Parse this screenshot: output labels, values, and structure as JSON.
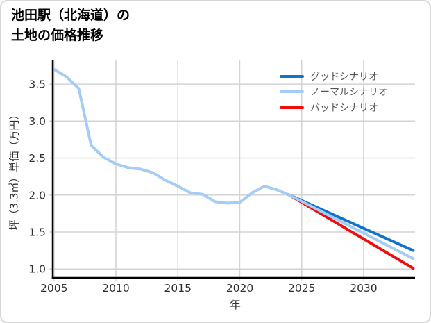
{
  "title": {
    "line1": "池田駅（北海道）の",
    "line2": "土地の価格推移"
  },
  "colors": {
    "good": "#1273cb",
    "normal": "#a4ccf4",
    "bad": "#f20d0d",
    "grid": "#d3d3d3",
    "axis": "#000000",
    "tick_text": "#303030",
    "legend_text": "#555555"
  },
  "legend": {
    "items": [
      {
        "label": "グッドシナリオ",
        "color_key": "good"
      },
      {
        "label": "ノーマルシナリオ",
        "color_key": "normal"
      },
      {
        "label": "バッドシナリオ",
        "color_key": "bad"
      }
    ]
  },
  "chart_data": {
    "type": "line",
    "title": "池田駅（北海道）の土地の価格推移",
    "xlabel": "年",
    "ylabel": "坪（3.3㎡）単価（万円）",
    "xlim": [
      2004.9,
      2034.15
    ],
    "ylim": [
      0.88,
      3.82
    ],
    "x_ticks": [
      2005,
      2010,
      2015,
      2020,
      2025,
      2030
    ],
    "y_ticks": [
      1.0,
      1.5,
      2.0,
      2.5,
      3.0,
      3.5
    ],
    "grid": true,
    "legend_position": "top-right",
    "series": [
      {
        "key": "history",
        "color_key": "normal",
        "x": [
          2005,
          2006,
          2007,
          2008,
          2009,
          2010,
          2011,
          2012,
          2013,
          2014,
          2015,
          2016,
          2017,
          2018,
          2019,
          2020,
          2021,
          2022,
          2023,
          2024
        ],
        "values": [
          3.7,
          3.6,
          3.44,
          2.67,
          2.51,
          2.42,
          2.37,
          2.35,
          2.3,
          2.2,
          2.12,
          2.03,
          2.01,
          1.91,
          1.89,
          1.9,
          2.03,
          2.12,
          2.07,
          2.0
        ]
      },
      {
        "key": "good",
        "legend": "グッドシナリオ",
        "color_key": "good",
        "x": [
          2024,
          2034
        ],
        "values": [
          2.0,
          1.25
        ]
      },
      {
        "key": "bad",
        "legend": "バッドシナリオ",
        "color_key": "bad",
        "x": [
          2024,
          2034
        ],
        "values": [
          2.0,
          1.01
        ]
      },
      {
        "key": "normal",
        "legend": "ノーマルシナリオ",
        "color_key": "normal",
        "x": [
          2024,
          2034
        ],
        "values": [
          2.0,
          1.14
        ]
      }
    ]
  }
}
